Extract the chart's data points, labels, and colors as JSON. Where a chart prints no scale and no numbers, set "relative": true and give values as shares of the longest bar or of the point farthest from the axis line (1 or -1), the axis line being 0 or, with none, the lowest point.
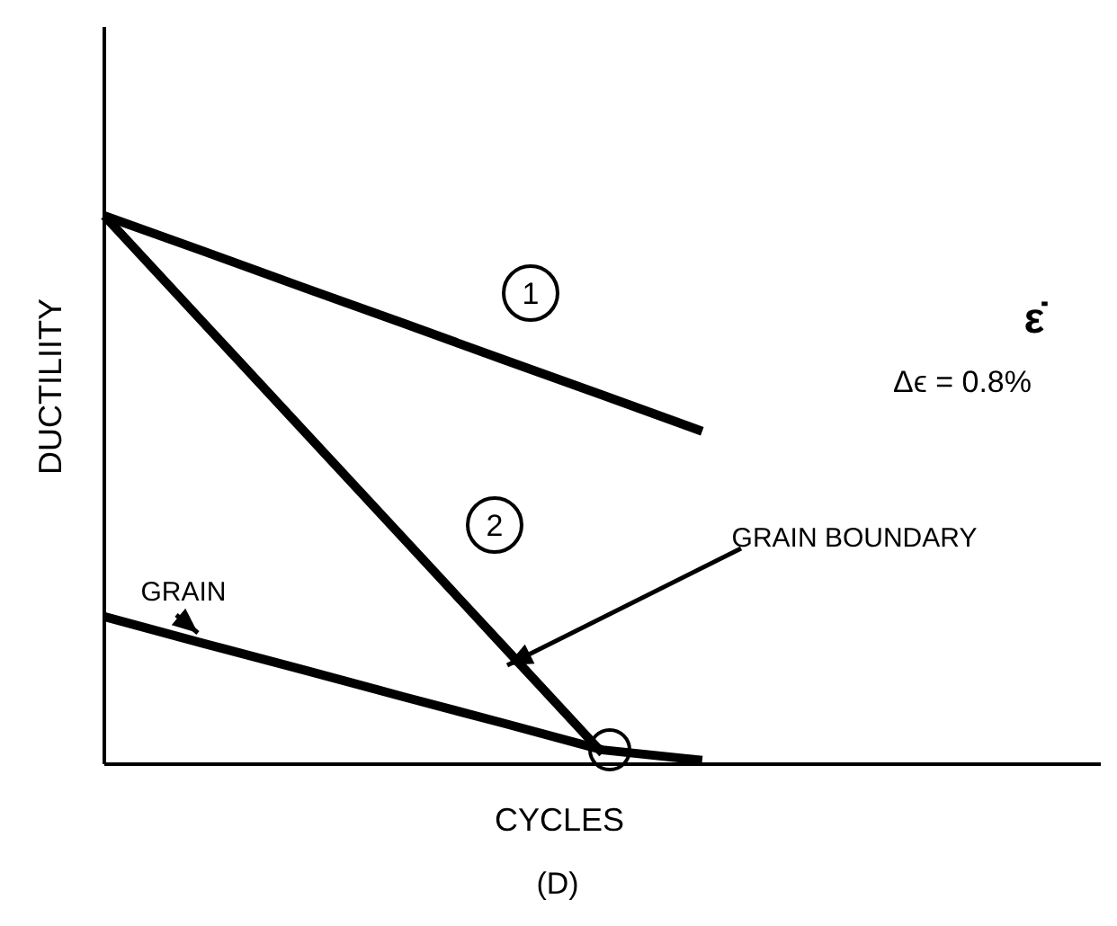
{
  "chart_data": {
    "type": "line",
    "relative": true,
    "xlabel": "CYCLES",
    "ylabel": "DUCTILIITY",
    "marker": "none",
    "line_style": "solid",
    "categories": [
      null,
      null,
      null,
      null,
      null,
      null,
      null,
      null,
      null,
      null,
      null
    ],
    "series": [
      {
        "color": "#000000",
        "values": [
          1,
          0.935,
          0.869,
          0.804,
          0.738,
          0.673,
          0.607,
          null,
          null,
          null,
          null
        ]
      },
      {
        "color": "#000000",
        "values": [
          1,
          0.804,
          0.608,
          0.412,
          0.216,
          0.02,
          null,
          null,
          null,
          null,
          null
        ]
      },
      {
        "color": "#000000",
        "values": [
          0.269,
          0.22,
          0.172,
          0.123,
          0.075,
          0.026,
          0.007,
          null,
          null,
          null,
          null
        ]
      }
    ],
    "annotations": [
      "1",
      "2",
      "GRAIN",
      "GRAIN BOUNDARY",
      "ε̇",
      "Δϵ = 0.8%",
      "(D)"
    ]
  }
}
